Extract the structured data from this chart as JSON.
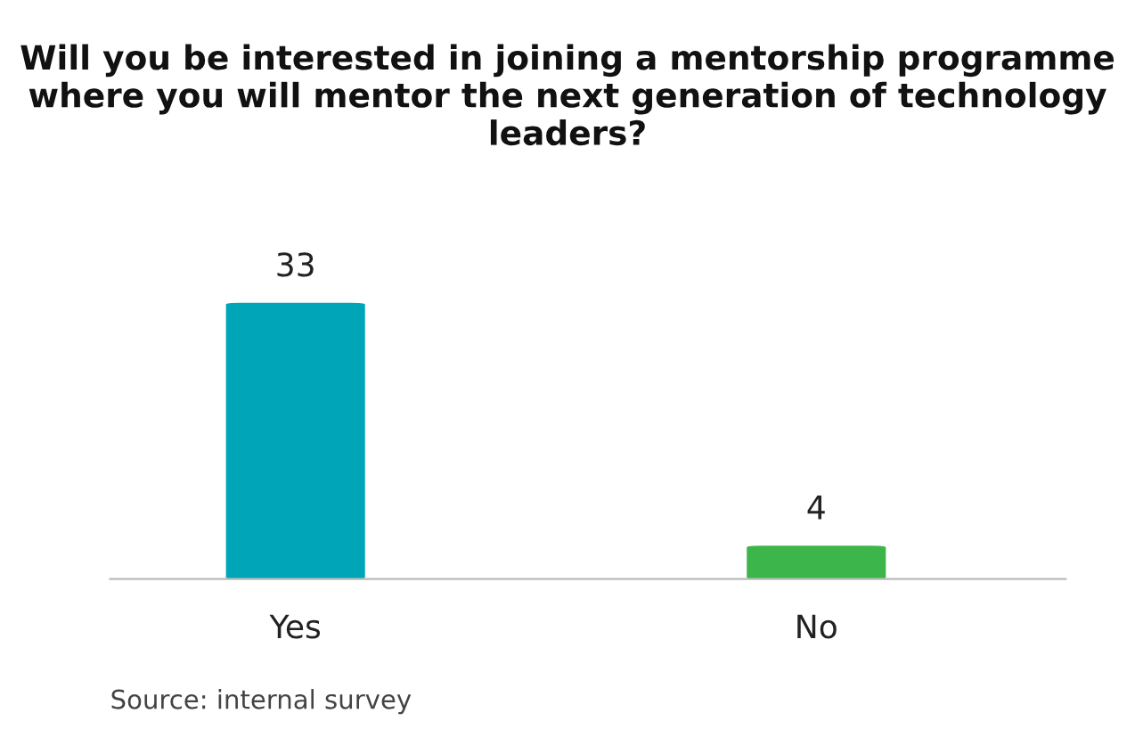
{
  "chart_data": {
    "type": "bar",
    "title": "Will you be interested in joining a mentorship programme where you will mentor the next generation of technology leaders?",
    "categories": [
      "Yes",
      "No"
    ],
    "values": [
      33,
      4
    ],
    "colors": [
      "#00a5b8",
      "#3cb54a"
    ],
    "data_labels": true,
    "grid": false,
    "legend": false,
    "annotations": [
      "Source: internal survey"
    ]
  }
}
